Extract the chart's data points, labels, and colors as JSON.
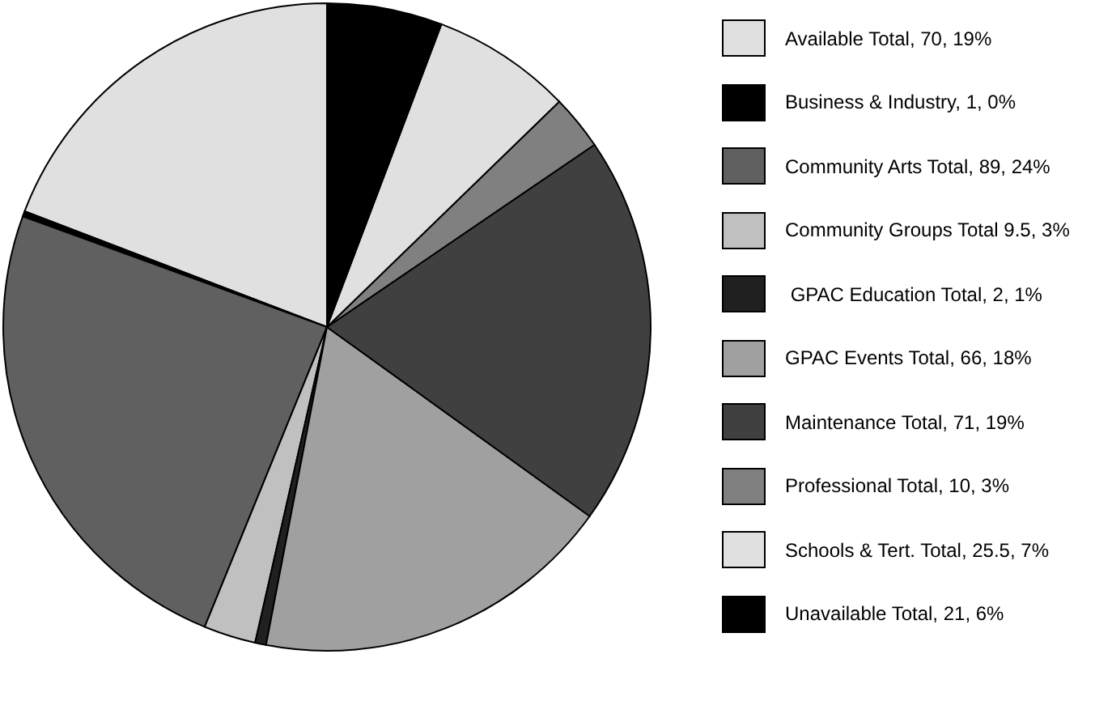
{
  "chart_data": {
    "type": "pie",
    "categories": [
      "Available Total, 70, 19%",
      "Business & Industry, 1, 0%",
      "Community Arts Total, 89, 24%",
      "Community Groups Total 9.5, 3%",
      " GPAC Education Total, 2, 1%",
      "GPAC Events Total, 66, 18%",
      "Maintenance Total, 71, 19%",
      "Professional Total, 10, 3%",
      "Schools & Tert. Total, 25.5, 7%",
      "Unavailable Total, 21, 6%"
    ],
    "values": [
      70,
      1,
      89,
      9.5,
      2,
      66,
      71,
      10,
      25.5,
      21
    ],
    "colors": [
      "#e0e0e0",
      "#000000",
      "#606060",
      "#c0c0c0",
      "#202020",
      "#a0a0a0",
      "#404040",
      "#808080",
      "#e0e0e0",
      "#000000"
    ],
    "legend": "right"
  }
}
